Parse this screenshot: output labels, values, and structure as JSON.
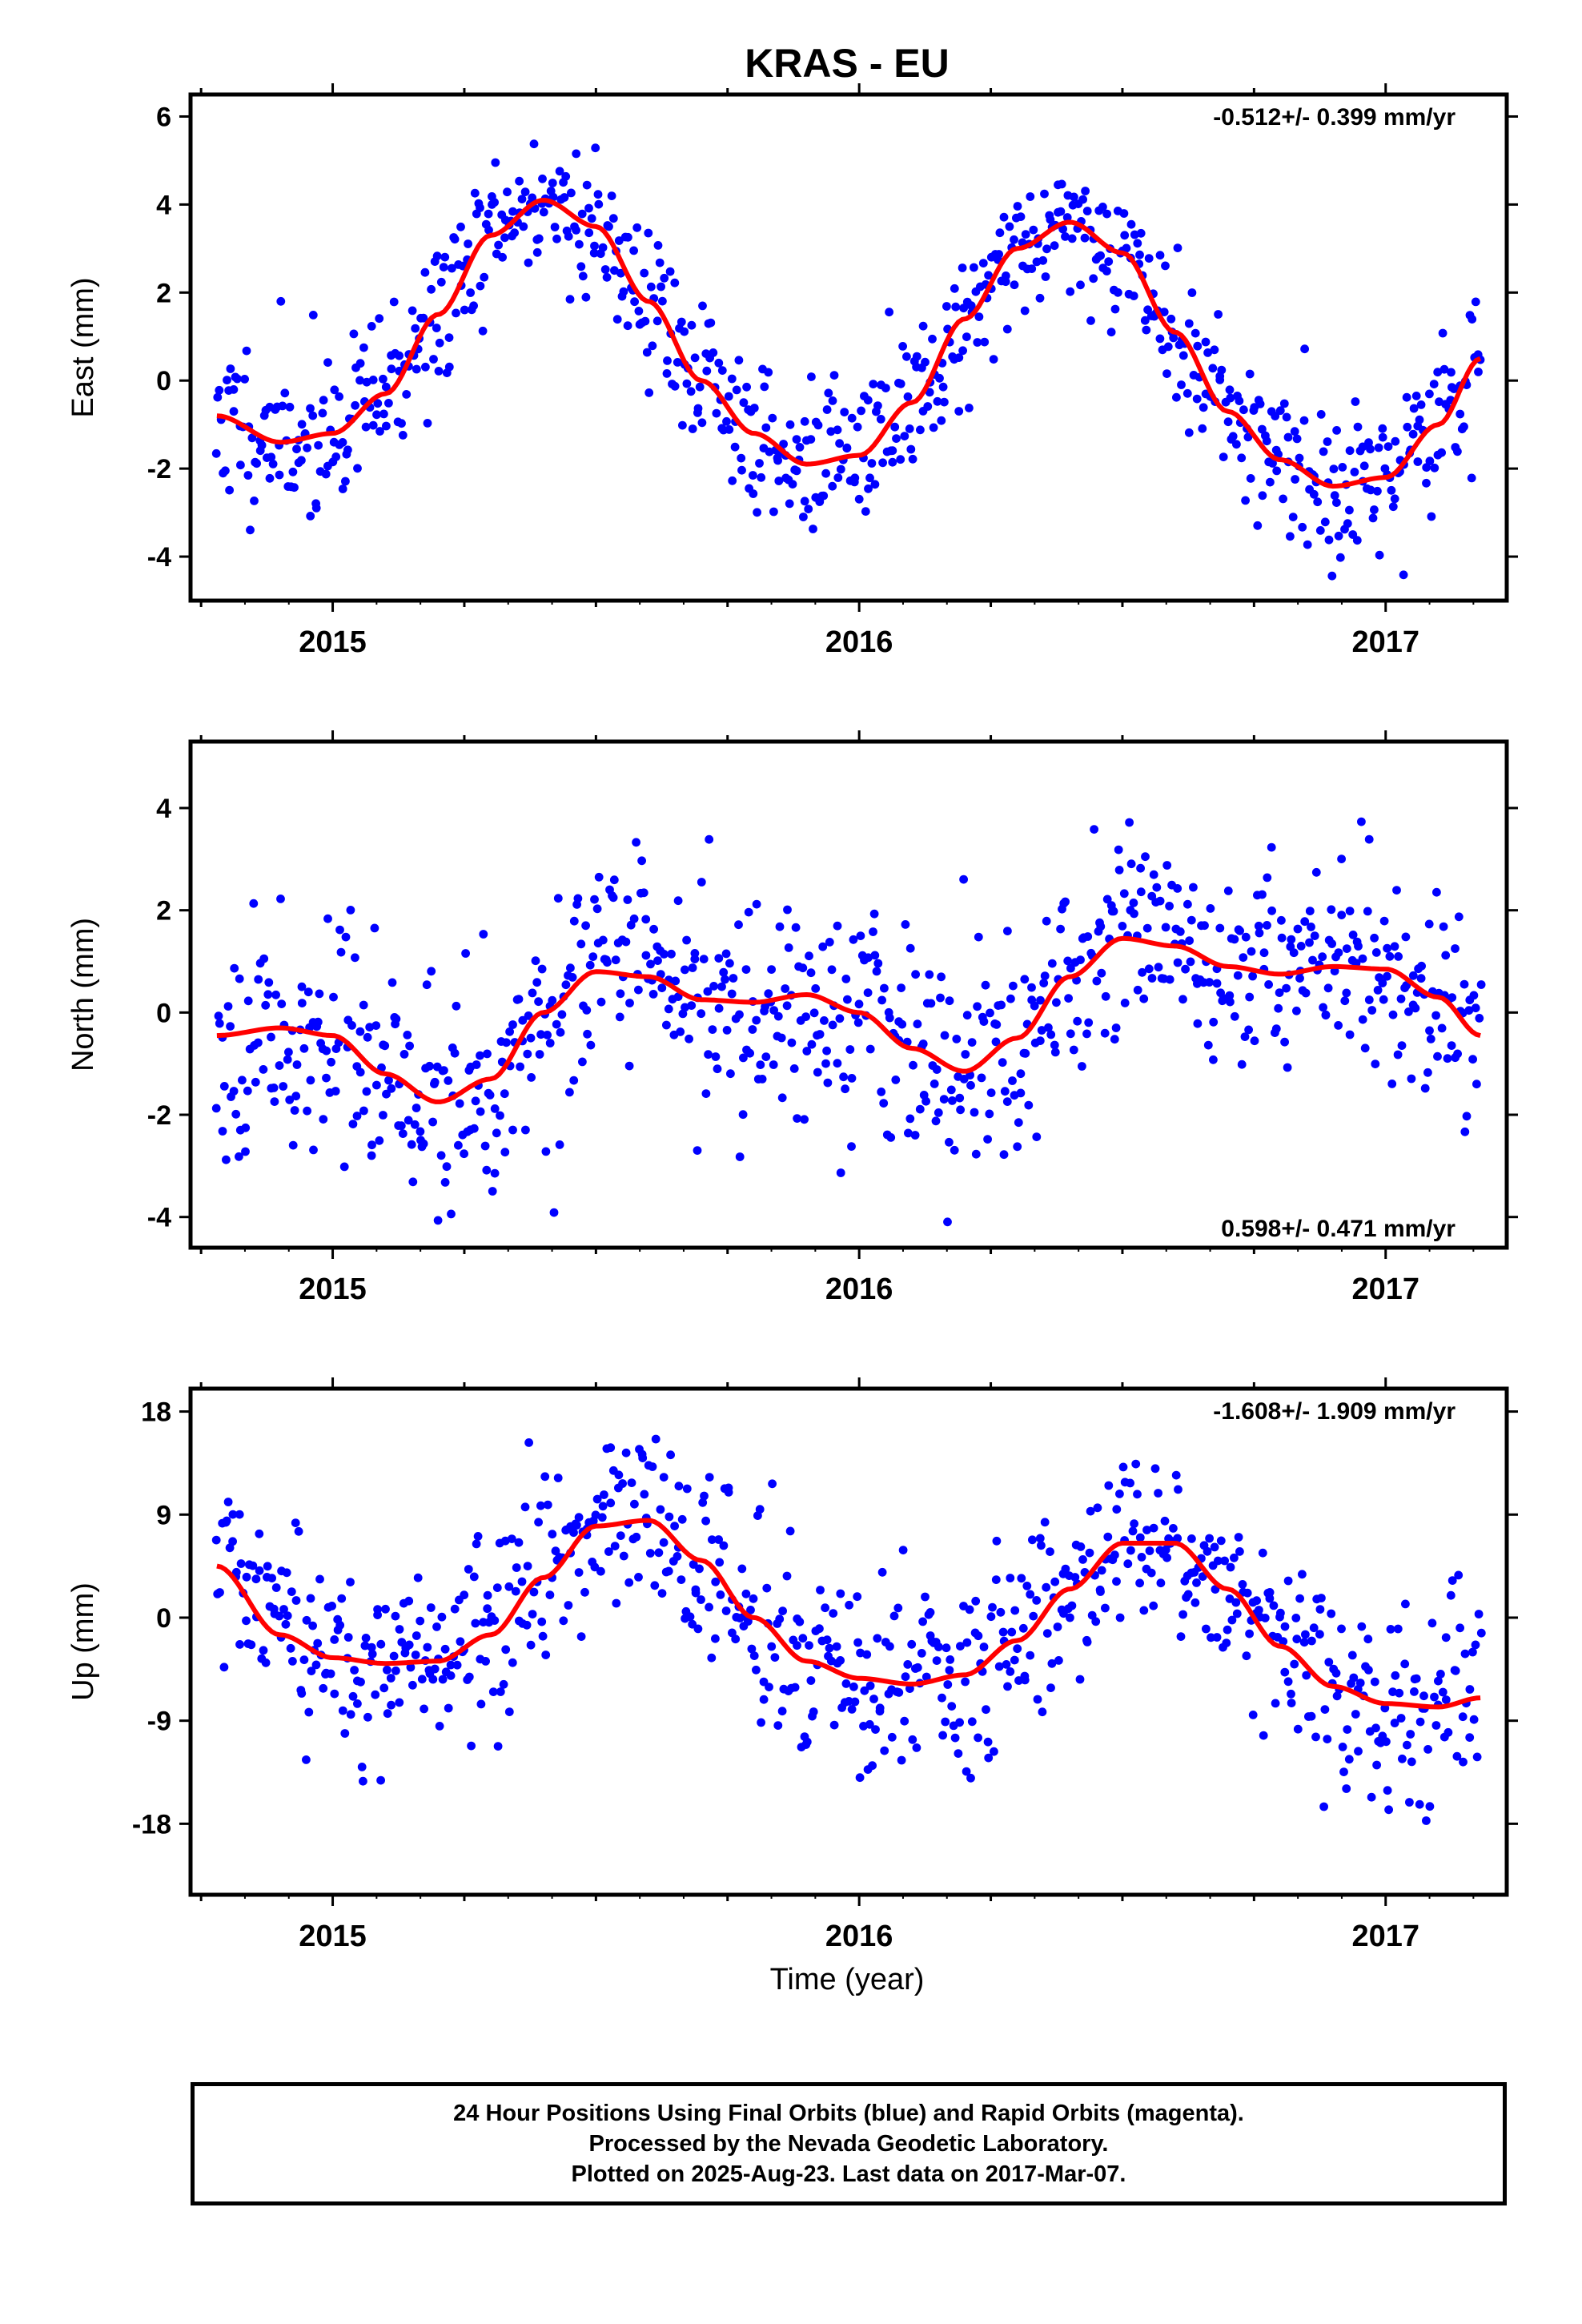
{
  "figure_title": "KRAS - EU",
  "x_axis_label": "Time (year)",
  "footer": {
    "line1": "24 Hour Positions Using Final Orbits (blue) and Rapid Orbits (magenta).",
    "line2": "Processed by the Nevada Geodetic Laboratory.",
    "line3": "Plotted on 2025-Aug-23. Last data on 2017-Mar-07."
  },
  "colors": {
    "points": "#0000ff",
    "fit": "#ff0000",
    "frame": "#000000"
  },
  "chart_data": [
    {
      "type": "scatter",
      "ylabel": "East (mm)",
      "rate_label": "-0.512+/- 0.399 mm/yr",
      "rate_position": "top-right",
      "xlim": [
        2014.73,
        2017.23
      ],
      "ylim": [
        -5.0,
        6.5
      ],
      "xticks": [
        2015,
        2016,
        2017
      ],
      "yticks": [
        -4,
        -2,
        0,
        2,
        4,
        6
      ],
      "fit_curve": {
        "x": [
          2014.78,
          2014.9,
          2015.0,
          2015.1,
          2015.2,
          2015.3,
          2015.4,
          2015.5,
          2015.6,
          2015.7,
          2015.8,
          2015.9,
          2016.0,
          2016.1,
          2016.2,
          2016.3,
          2016.4,
          2016.5,
          2016.6,
          2016.7,
          2016.8,
          2016.9,
          2017.0,
          2017.1,
          2017.18
        ],
        "y": [
          -0.8,
          -1.4,
          -1.2,
          -0.3,
          1.5,
          3.3,
          4.1,
          3.5,
          1.8,
          0.0,
          -1.2,
          -1.9,
          -1.7,
          -0.5,
          1.4,
          3.0,
          3.6,
          2.9,
          1.1,
          -0.7,
          -1.8,
          -2.4,
          -2.2,
          -1.0,
          0.5
        ]
      },
      "scatter": {
        "n": 780,
        "noise": 0.9,
        "seed": 11
      }
    },
    {
      "type": "scatter",
      "ylabel": "North (mm)",
      "rate_label": "0.598+/- 0.471 mm/yr",
      "rate_position": "bottom-right",
      "xlim": [
        2014.73,
        2017.23
      ],
      "ylim": [
        -4.6,
        5.3
      ],
      "xticks": [
        2015,
        2016,
        2017
      ],
      "yticks": [
        -4,
        -2,
        0,
        2,
        4
      ],
      "fit_curve": {
        "x": [
          2014.78,
          2014.9,
          2015.0,
          2015.1,
          2015.2,
          2015.3,
          2015.4,
          2015.5,
          2015.6,
          2015.7,
          2015.8,
          2015.9,
          2016.0,
          2016.1,
          2016.2,
          2016.3,
          2016.4,
          2016.5,
          2016.6,
          2016.7,
          2016.8,
          2016.9,
          2017.0,
          2017.1,
          2017.18
        ],
        "y": [
          -0.45,
          -0.3,
          -0.45,
          -1.2,
          -1.75,
          -1.3,
          0.0,
          0.8,
          0.7,
          0.25,
          0.2,
          0.35,
          0.0,
          -0.7,
          -1.15,
          -0.5,
          0.7,
          1.45,
          1.3,
          0.9,
          0.75,
          0.9,
          0.85,
          0.3,
          -0.45
        ]
      },
      "scatter": {
        "n": 780,
        "noise": 1.1,
        "seed": 23
      }
    },
    {
      "type": "scatter",
      "ylabel": "Up (mm)",
      "rate_label": "-1.608+/- 1.909 mm/yr",
      "rate_position": "top-right",
      "xlim": [
        2014.73,
        2017.23
      ],
      "ylim": [
        -24.2,
        20.0
      ],
      "xticks": [
        2015,
        2016,
        2017
      ],
      "yticks": [
        -18,
        -9,
        0,
        9,
        18
      ],
      "fit_curve": {
        "x": [
          2014.78,
          2014.9,
          2015.0,
          2015.1,
          2015.2,
          2015.3,
          2015.4,
          2015.5,
          2015.6,
          2015.7,
          2015.8,
          2015.9,
          2016.0,
          2016.1,
          2016.2,
          2016.3,
          2016.4,
          2016.5,
          2016.6,
          2016.7,
          2016.8,
          2016.9,
          2017.0,
          2017.1,
          2017.18
        ],
        "y": [
          4.5,
          -1.5,
          -3.5,
          -4.0,
          -3.8,
          -1.5,
          3.5,
          8.0,
          8.5,
          5.0,
          0.0,
          -3.8,
          -5.3,
          -5.8,
          -5.0,
          -2.0,
          2.5,
          6.5,
          6.5,
          2.5,
          -2.5,
          -6.0,
          -7.5,
          -7.8,
          -7.0
        ]
      },
      "scatter": {
        "n": 760,
        "noise": 4.2,
        "seed": 37
      }
    }
  ]
}
